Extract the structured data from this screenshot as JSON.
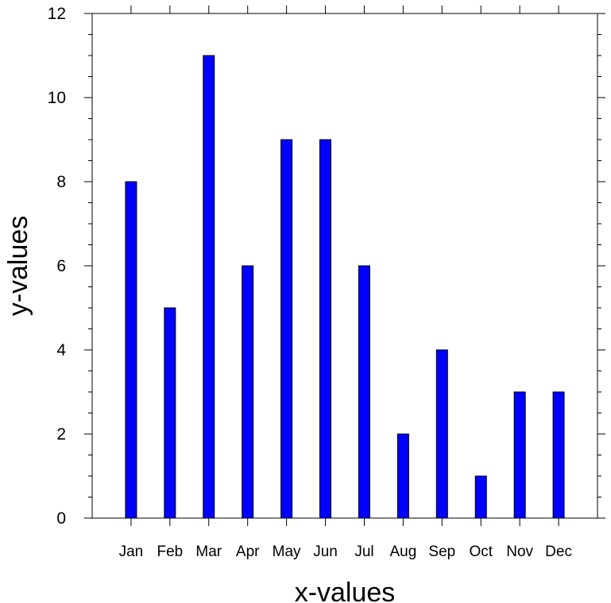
{
  "chart_data": {
    "type": "bar",
    "title": "",
    "xlabel": "x-values",
    "ylabel": "y-values",
    "categories": [
      "Jan",
      "Feb",
      "Mar",
      "Apr",
      "May",
      "Jun",
      "Jul",
      "Aug",
      "Sep",
      "Oct",
      "Nov",
      "Dec"
    ],
    "values": [
      8,
      5,
      11,
      6,
      9,
      9,
      6,
      2,
      4,
      1,
      3,
      3
    ],
    "ylim": [
      0,
      12
    ],
    "yticks": [
      "0",
      "2",
      "4",
      "6",
      "8",
      "10",
      "12"
    ],
    "grid": false,
    "legend": "none",
    "bar_color": "#0000ff",
    "bar_edge_color": "#000000"
  }
}
